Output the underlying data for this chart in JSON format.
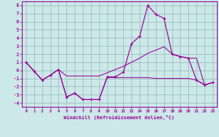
{
  "xlabel": "Windchill (Refroidissement éolien,°C)",
  "bg_color": "#cce8e8",
  "line_color": "#990099",
  "grid_color": "#99bbbb",
  "x_data": [
    0,
    1,
    2,
    3,
    4,
    5,
    6,
    7,
    8,
    9,
    10,
    11,
    12,
    13,
    14,
    15,
    16,
    17,
    18,
    19,
    20,
    21,
    22,
    23
  ],
  "y_main": [
    1.0,
    -0.1,
    -1.2,
    -0.6,
    0.1,
    -3.3,
    -2.8,
    -3.6,
    -3.6,
    -3.6,
    -0.8,
    -0.8,
    -0.2,
    3.3,
    4.2,
    8.0,
    6.9,
    6.4,
    2.0,
    1.7,
    1.5,
    -1.2,
    -1.8,
    -1.5
  ],
  "y_min": [
    1.0,
    -0.1,
    -1.2,
    -0.6,
    0.1,
    -3.3,
    -2.8,
    -3.6,
    -3.6,
    -3.6,
    -0.9,
    -0.9,
    -0.9,
    -0.9,
    -0.9,
    -0.9,
    -1.0,
    -1.0,
    -1.0,
    -1.0,
    -1.0,
    -1.2,
    -1.8,
    -1.5
  ],
  "y_max": [
    1.0,
    -0.1,
    -1.2,
    -0.6,
    0.1,
    -0.7,
    -0.7,
    -0.7,
    -0.7,
    -0.7,
    -0.3,
    0.1,
    0.5,
    1.0,
    1.5,
    2.1,
    2.5,
    2.9,
    2.0,
    1.7,
    1.5,
    1.5,
    -1.8,
    -1.5
  ],
  "xlim": [
    -0.5,
    23.5
  ],
  "ylim": [
    -4.5,
    8.5
  ],
  "yticks": [
    -4,
    -3,
    -2,
    -1,
    0,
    1,
    2,
    3,
    4,
    5,
    6,
    7,
    8
  ],
  "xticks": [
    0,
    1,
    2,
    3,
    4,
    5,
    6,
    7,
    8,
    9,
    10,
    11,
    12,
    13,
    14,
    15,
    16,
    17,
    18,
    19,
    20,
    21,
    22,
    23
  ]
}
